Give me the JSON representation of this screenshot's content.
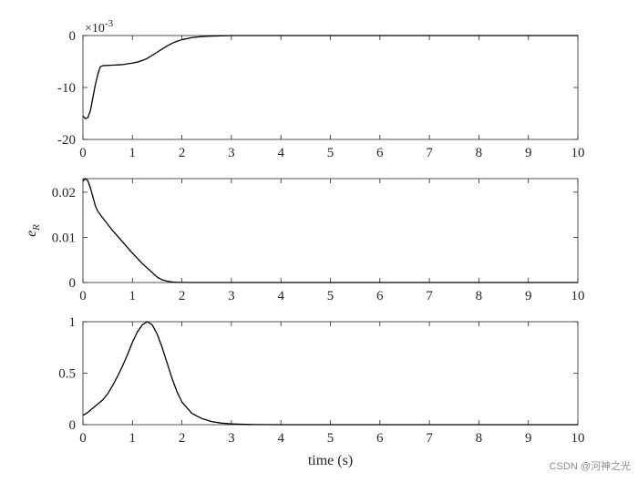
{
  "chart_data": [
    {
      "type": "line",
      "xlabel": "",
      "ylabel": "",
      "xlim": [
        0,
        10
      ],
      "ylim": [
        -20,
        0
      ],
      "x_ticks": [
        "0",
        "1",
        "2",
        "3",
        "4",
        "5",
        "6",
        "7",
        "8",
        "9",
        "10"
      ],
      "y_ticks": [
        "-20",
        "-10",
        "0"
      ],
      "y_exponent": "×10",
      "y_exponent_power": "-3",
      "grid": false,
      "series": [
        {
          "x": [
            0,
            0.05,
            0.1,
            0.15,
            0.2,
            0.25,
            0.3,
            0.35,
            0.4,
            0.6,
            0.8,
            1.0,
            1.1,
            1.2,
            1.3,
            1.4,
            1.5,
            1.6,
            1.7,
            1.8,
            1.9,
            2.0,
            2.2,
            2.4,
            2.6,
            2.8,
            3.0,
            3.5,
            4,
            5,
            6,
            7,
            8,
            9,
            10
          ],
          "y": [
            -15.5,
            -16.0,
            -15.8,
            -14.5,
            -12.0,
            -9.5,
            -7.5,
            -6.0,
            -5.8,
            -5.7,
            -5.6,
            -5.3,
            -5.1,
            -4.8,
            -4.4,
            -3.8,
            -3.2,
            -2.6,
            -2.0,
            -1.5,
            -1.1,
            -0.8,
            -0.4,
            -0.2,
            -0.1,
            -0.05,
            0,
            0,
            0,
            0,
            0,
            0,
            0,
            0,
            0
          ]
        }
      ]
    },
    {
      "type": "line",
      "xlabel": "",
      "ylabel": "e_R",
      "xlim": [
        0,
        10
      ],
      "ylim": [
        0,
        0.023
      ],
      "x_ticks": [
        "0",
        "1",
        "2",
        "3",
        "4",
        "5",
        "6",
        "7",
        "8",
        "9",
        "10"
      ],
      "y_ticks": [
        "0",
        "0.01",
        "0.02"
      ],
      "y_tick_values": [
        0,
        0.01,
        0.02
      ],
      "grid": false,
      "series": [
        {
          "x": [
            0,
            0.05,
            0.1,
            0.15,
            0.2,
            0.25,
            0.3,
            0.35,
            0.4,
            0.6,
            0.8,
            1.0,
            1.2,
            1.4,
            1.5,
            1.6,
            1.7,
            1.8,
            1.9,
            2.0,
            2.2,
            2.5,
            3,
            4,
            5,
            6,
            7,
            8,
            9,
            10
          ],
          "y": [
            0.0225,
            0.023,
            0.0225,
            0.021,
            0.019,
            0.017,
            0.0158,
            0.015,
            0.0143,
            0.0115,
            0.009,
            0.0065,
            0.0042,
            0.0022,
            0.0012,
            0.0006,
            0.0003,
            0.00012,
            5e-05,
            2e-05,
            0,
            0,
            0,
            0,
            0,
            0,
            0,
            0,
            0,
            0
          ]
        }
      ]
    },
    {
      "type": "line",
      "xlabel": "time (s)",
      "ylabel": "",
      "xlim": [
        0,
        10
      ],
      "ylim": [
        0,
        1
      ],
      "x_ticks": [
        "0",
        "1",
        "2",
        "3",
        "4",
        "5",
        "6",
        "7",
        "8",
        "9",
        "10"
      ],
      "y_ticks": [
        "0",
        "0.5",
        "1"
      ],
      "y_tick_values": [
        0,
        0.5,
        1
      ],
      "grid": false,
      "series": [
        {
          "x": [
            0,
            0.1,
            0.2,
            0.3,
            0.4,
            0.5,
            0.6,
            0.7,
            0.8,
            0.9,
            1.0,
            1.1,
            1.2,
            1.3,
            1.4,
            1.5,
            1.6,
            1.7,
            1.8,
            1.9,
            2.0,
            2.2,
            2.4,
            2.6,
            2.8,
            3.0,
            3.2,
            3.5,
            4,
            5,
            6,
            7,
            8,
            9,
            10
          ],
          "y": [
            0.09,
            0.12,
            0.16,
            0.2,
            0.24,
            0.3,
            0.38,
            0.47,
            0.57,
            0.68,
            0.8,
            0.9,
            0.97,
            1.0,
            0.97,
            0.88,
            0.75,
            0.6,
            0.45,
            0.32,
            0.22,
            0.11,
            0.06,
            0.03,
            0.015,
            0.008,
            0.004,
            0.001,
            0,
            0,
            0,
            0,
            0,
            0,
            0
          ]
        }
      ]
    }
  ],
  "watermark": "CSDN @河神之光"
}
